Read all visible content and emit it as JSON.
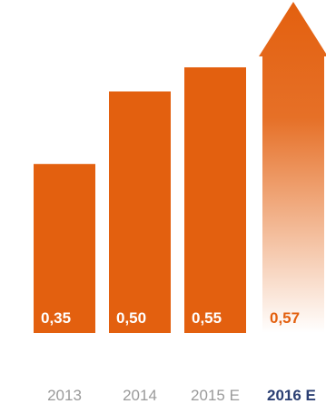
{
  "chart_data": {
    "type": "bar",
    "categories": [
      "2013",
      "2014",
      "2015 E",
      "2016 E"
    ],
    "values": [
      0.35,
      0.5,
      0.55,
      0.57
    ],
    "value_labels": [
      "0,35",
      "0,50",
      "0,55",
      "0,57"
    ],
    "highlighted_category": "2016 E",
    "last_bar_style": "arrow-gradient",
    "title": "",
    "xlabel": "",
    "ylabel": "",
    "ylim": [
      0,
      0.6
    ],
    "grid": false,
    "legend": "none",
    "colors": {
      "bar": "#E3600F",
      "value_label_on_bar": "#ffffff",
      "value_label_off_bar": "#E3600F",
      "category_label": "#9a9a9a",
      "category_label_highlight": "#2b3f73"
    }
  }
}
